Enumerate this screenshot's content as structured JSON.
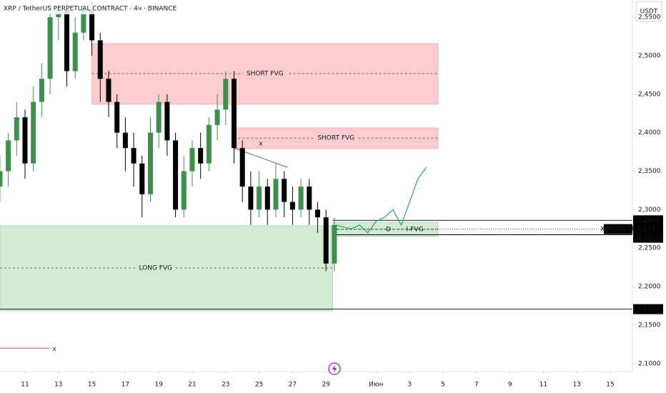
{
  "chart_data": {
    "type": "candlestick",
    "title": "XRP / TetherUS PERPETUAL CONTRACT · 4ч · BINANCE",
    "currency": "USDT",
    "up_color": "#3d8f4e",
    "down_color": "#000000",
    "x": [
      9.5,
      10,
      10.5,
      11,
      11.5,
      12,
      12.5,
      13,
      13.5,
      14,
      14.5,
      15,
      15.5,
      16,
      16.5,
      17,
      17.5,
      18,
      18.5,
      19,
      19.5,
      20,
      20.5,
      21,
      21.5,
      22,
      22.5,
      23,
      23.5,
      24,
      24.5,
      25,
      25.5,
      26,
      26.5,
      27,
      27.5,
      28,
      28.5,
      29,
      29.5
    ],
    "open": [
      2.33,
      2.35,
      2.39,
      2.42,
      2.36,
      2.44,
      2.47,
      2.55,
      2.56,
      2.48,
      2.53,
      2.56,
      2.52,
      2.47,
      2.44,
      2.4,
      2.38,
      2.36,
      2.32,
      2.4,
      2.44,
      2.39,
      2.3,
      2.35,
      2.38,
      2.36,
      2.41,
      2.43,
      2.47,
      2.38,
      2.33,
      2.3,
      2.33,
      2.3,
      2.34,
      2.31,
      2.3,
      2.33,
      2.3,
      2.29,
      2.23
    ],
    "high": [
      2.37,
      2.4,
      2.44,
      2.43,
      2.46,
      2.49,
      2.57,
      2.57,
      2.57,
      2.55,
      2.57,
      2.57,
      2.53,
      2.48,
      2.45,
      2.42,
      2.4,
      2.37,
      2.42,
      2.45,
      2.45,
      2.4,
      2.37,
      2.39,
      2.4,
      2.42,
      2.45,
      2.48,
      2.48,
      2.39,
      2.35,
      2.35,
      2.34,
      2.36,
      2.35,
      2.33,
      2.34,
      2.34,
      2.31,
      2.3,
      2.29
    ],
    "low": [
      2.31,
      2.33,
      2.37,
      2.34,
      2.35,
      2.42,
      2.45,
      2.52,
      2.46,
      2.47,
      2.52,
      2.5,
      2.44,
      2.42,
      2.38,
      2.35,
      2.33,
      2.29,
      2.31,
      2.38,
      2.37,
      2.29,
      2.29,
      2.33,
      2.34,
      2.35,
      2.39,
      2.41,
      2.36,
      2.31,
      2.28,
      2.29,
      2.28,
      2.29,
      2.29,
      2.28,
      2.29,
      2.28,
      2.27,
      2.22,
      2.22
    ],
    "close": [
      2.35,
      2.39,
      2.42,
      2.36,
      2.44,
      2.47,
      2.55,
      2.56,
      2.48,
      2.53,
      2.56,
      2.52,
      2.47,
      2.44,
      2.4,
      2.38,
      2.36,
      2.32,
      2.4,
      2.44,
      2.39,
      2.3,
      2.35,
      2.38,
      2.36,
      2.41,
      2.43,
      2.47,
      2.38,
      2.33,
      2.3,
      2.33,
      2.3,
      2.34,
      2.31,
      2.3,
      2.33,
      2.3,
      2.29,
      2.23,
      2.28
    ],
    "xlim": [
      9.5,
      46.6
    ],
    "xticks": [
      11,
      13,
      15,
      17,
      19,
      21,
      23,
      25,
      27,
      29,
      {
        "value": 32,
        "label": "Июн"
      },
      {
        "value": 34,
        "label": "3"
      },
      {
        "value": 36,
        "label": "5"
      },
      {
        "value": 38,
        "label": "7"
      },
      {
        "value": 40,
        "label": "9"
      },
      {
        "value": 42,
        "label": "11"
      },
      {
        "value": 44,
        "label": "13"
      },
      {
        "value": 46,
        "label": "15"
      }
    ],
    "ylim": [
      2.0896,
      2.5724
    ],
    "yticks": [
      {
        "value": 2.1,
        "label": "2,1000"
      },
      {
        "value": 2.15,
        "label": "2,1500"
      },
      {
        "value": 2.2,
        "label": "2,2000"
      },
      {
        "value": 2.25,
        "label": "2,2500"
      },
      {
        "value": 2.3,
        "label": "2,3000"
      },
      {
        "value": 2.35,
        "label": "2,3500"
      },
      {
        "value": 2.4,
        "label": "2,4000"
      },
      {
        "value": 2.45,
        "label": "2,4500"
      },
      {
        "value": 2.5,
        "label": "2,5000"
      },
      {
        "value": 2.55,
        "label": "2,5500"
      }
    ],
    "zones": [
      {
        "label": "SHORT FVG",
        "x": [
          15,
          35.7
        ],
        "y": [
          2.4369,
          2.5158
        ],
        "mid": 2.4768,
        "color": "#fbcdd1"
      },
      {
        "label": "SHORT FVG",
        "x": [
          23.5,
          35.7
        ],
        "y": [
          2.3793,
          2.4062
        ],
        "mid": 2.393,
        "color": "#fbcdd1"
      },
      {
        "label": "LONG FVG",
        "x": [
          9.5,
          29.4
        ],
        "y": [
          2.1685,
          2.279
        ],
        "mid": 2.2242,
        "color": "#d3ebd5"
      },
      {
        "label": "I-FVG",
        "x": [
          29.4,
          35.7
        ],
        "y": [
          2.2651,
          2.2837
        ],
        "mid": 2.2743,
        "color": "#d3ebd5"
      }
    ],
    "midpoint_label": "D",
    "projection": {
      "color": "#22a37a",
      "x": [
        29.6,
        30.5,
        31,
        31.5,
        32,
        32.5,
        33,
        33.5,
        34,
        34.5,
        35
      ],
      "values": [
        2.28,
        2.275,
        2.28,
        2.27,
        2.285,
        2.29,
        2.3,
        2.28,
        2.31,
        2.34,
        2.355
      ]
    },
    "trendline": {
      "x": [
        23.5,
        26.7
      ],
      "values": [
        2.38,
        2.355
      ],
      "label": "x"
    },
    "marker": {
      "x": [
        9.5,
        12.5
      ],
      "value": 2.12,
      "label": "x"
    },
    "price_levels": [
      {
        "value": 2.2861,
        "label": "2,2861"
      },
      {
        "value": 2.2674,
        "label": "2,2674"
      },
      {
        "value": 2.1707,
        "label": "2,1707"
      }
    ],
    "last_price": {
      "symbol": "XRPUSDT.P",
      "value": 2.2747,
      "label": "2,2747",
      "countdown": "01:22:34"
    }
  }
}
